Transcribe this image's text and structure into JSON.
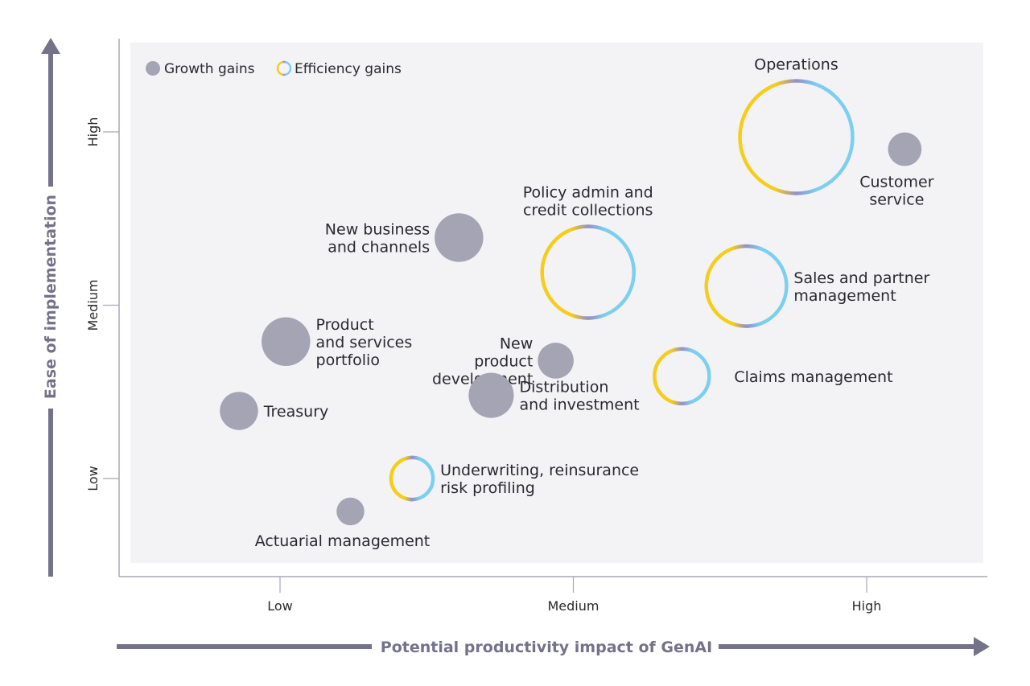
{
  "chart_data": {
    "type": "scatter",
    "subtype": "bubble",
    "title": "",
    "xlabel": "Potential productivity impact of GenAI",
    "ylabel": "Ease of implementation",
    "x_ticks": [
      {
        "value": 1,
        "label": "Low"
      },
      {
        "value": 2,
        "label": "Medium"
      },
      {
        "value": 3,
        "label": "High"
      }
    ],
    "y_ticks": [
      {
        "value": 1,
        "label": "Low"
      },
      {
        "value": 2,
        "label": "Medium"
      },
      {
        "value": 3,
        "label": "High"
      }
    ],
    "xlim": [
      0.45,
      3.4
    ],
    "ylim": [
      0.45,
      3.5
    ],
    "grid": false,
    "legend_position": "top-left",
    "colors": {
      "growth_fill": "#a5a4b4",
      "ring_yellow": "#f5cd1a",
      "ring_purple": "#9490c8",
      "ring_blue": "#7ccff0",
      "axis_arrow": "#74728a",
      "plot_bg": "#f3f3f6",
      "axis_line": "#a9a8b8"
    },
    "series": [
      {
        "name": "Growth gains",
        "style": "filled",
        "legend_label": "Growth gains"
      },
      {
        "name": "Efficiency gains",
        "style": "ring",
        "legend_label": "Efficiency gains"
      }
    ],
    "points": [
      {
        "label": [
          "Operations"
        ],
        "series": "Efficiency gains",
        "x": 2.76,
        "y": 2.97,
        "size": 1.0,
        "label_pos": "top"
      },
      {
        "label": [
          "Customer",
          "service"
        ],
        "series": "Growth gains",
        "x": 3.13,
        "y": 2.9,
        "size": 0.29,
        "label_pos": "bottom"
      },
      {
        "label": [
          "Policy admin and",
          "credit collections"
        ],
        "series": "Efficiency gains",
        "x": 2.05,
        "y": 2.19,
        "size": 0.82,
        "label_pos": "top"
      },
      {
        "label": [
          "Sales and partner",
          "management"
        ],
        "series": "Efficiency gains",
        "x": 2.59,
        "y": 2.11,
        "size": 0.72,
        "label_pos": "right"
      },
      {
        "label": [
          "New business",
          "and channels"
        ],
        "series": "Growth gains",
        "x": 1.61,
        "y": 2.39,
        "size": 0.42,
        "label_pos": "left"
      },
      {
        "label": [
          "Product",
          "and services",
          "portfolio"
        ],
        "series": "Growth gains",
        "x": 1.02,
        "y": 1.79,
        "size": 0.42,
        "label_pos": "right"
      },
      {
        "label": [
          "New",
          "product",
          "development"
        ],
        "series": "Growth gains",
        "x": 1.94,
        "y": 1.68,
        "size": 0.31,
        "label_pos": "left"
      },
      {
        "label": [
          "Distribution",
          "and investment"
        ],
        "series": "Growth gains",
        "x": 1.72,
        "y": 1.48,
        "size": 0.39,
        "label_pos": "right"
      },
      {
        "label": [
          "Claims management"
        ],
        "series": "Efficiency gains",
        "x": 2.37,
        "y": 1.59,
        "size": 0.5,
        "label_pos": "right-far"
      },
      {
        "label": [
          "Treasury"
        ],
        "series": "Growth gains",
        "x": 0.86,
        "y": 1.39,
        "size": 0.33,
        "label_pos": "right"
      },
      {
        "label": [
          "Underwriting, reinsurance",
          "risk profiling"
        ],
        "series": "Efficiency gains",
        "x": 1.45,
        "y": 1.0,
        "size": 0.39,
        "label_pos": "right"
      },
      {
        "label": [
          "Actuarial management"
        ],
        "series": "Growth gains",
        "x": 1.24,
        "y": 0.81,
        "size": 0.24,
        "label_pos": "bottom"
      }
    ]
  }
}
